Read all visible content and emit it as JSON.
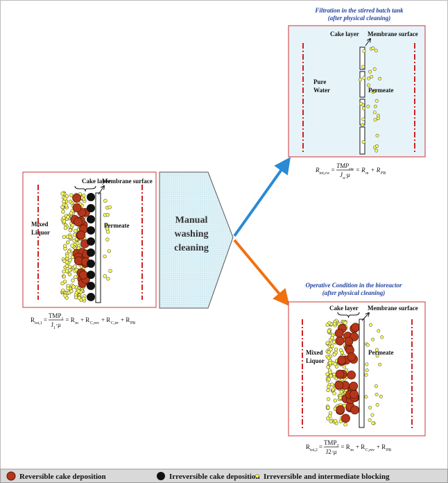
{
  "left_panel": {
    "cake_label": "Cake layer",
    "membrane_label": "Membrane surface",
    "feed_label": [
      "Mixed",
      "Liquor"
    ],
    "permeate_label": "Permeate",
    "formula": {
      "lhs": "R",
      "lhs_sub": "tot,1",
      "eq": "=",
      "num": "TMP",
      "num_sub": "1",
      "den": "J",
      "den_sub": "1",
      "den_tail": "·μ",
      "terms": [
        {
          "text": "= R",
          "sub": "m"
        },
        {
          "text": "+ R",
          "sub": "C,rev"
        },
        {
          "text": "+ R",
          "sub": "C,irr"
        },
        {
          "text": "+ R",
          "sub": "PB"
        }
      ]
    }
  },
  "cleaning_step": {
    "label": [
      "Manual",
      "washing",
      "cleaning"
    ]
  },
  "top_panel": {
    "title": [
      "Filtration in the stirred batch tank",
      "(after physical cleaning)"
    ],
    "cake_label": "Cake layer",
    "membrane_label": "Membrane surface",
    "feed_label": [
      "Pure",
      "Water"
    ],
    "permeate_label": "Permeate",
    "formula": {
      "lhs": "R",
      "lhs_sub": "tot,cw",
      "eq": "=",
      "num": "TMP",
      "num_sub": "cw",
      "den": "J",
      "den_sub": "w",
      "den_tail": "·μ",
      "terms": [
        {
          "text": "= R",
          "sub": "m"
        },
        {
          "text": "+ R",
          "sub": "PB"
        }
      ]
    }
  },
  "bottom_panel": {
    "title": [
      "Operative Condition in the bioreactor",
      "(after physical cleaning)"
    ],
    "cake_label": "Cake layer",
    "membrane_label": "Membrane surface",
    "feed_label": [
      "Mixed",
      "Liquor"
    ],
    "permeate_label": "Permeate",
    "formula": {
      "lhs": "R",
      "lhs_sub": "tot,2",
      "eq": "=",
      "num": "TMP",
      "num_sub": "2",
      "den": "J2·μ",
      "terms": [
        {
          "text": "= R",
          "sub": "m"
        },
        {
          "text": "+ R",
          "sub": "C,rev"
        },
        {
          "text": "+ R",
          "sub": "PB"
        }
      ]
    }
  },
  "legend": [
    "Reversible cake deposition",
    "Irreversible cake deposition",
    "Irreversible and intermediate blocking"
  ]
}
